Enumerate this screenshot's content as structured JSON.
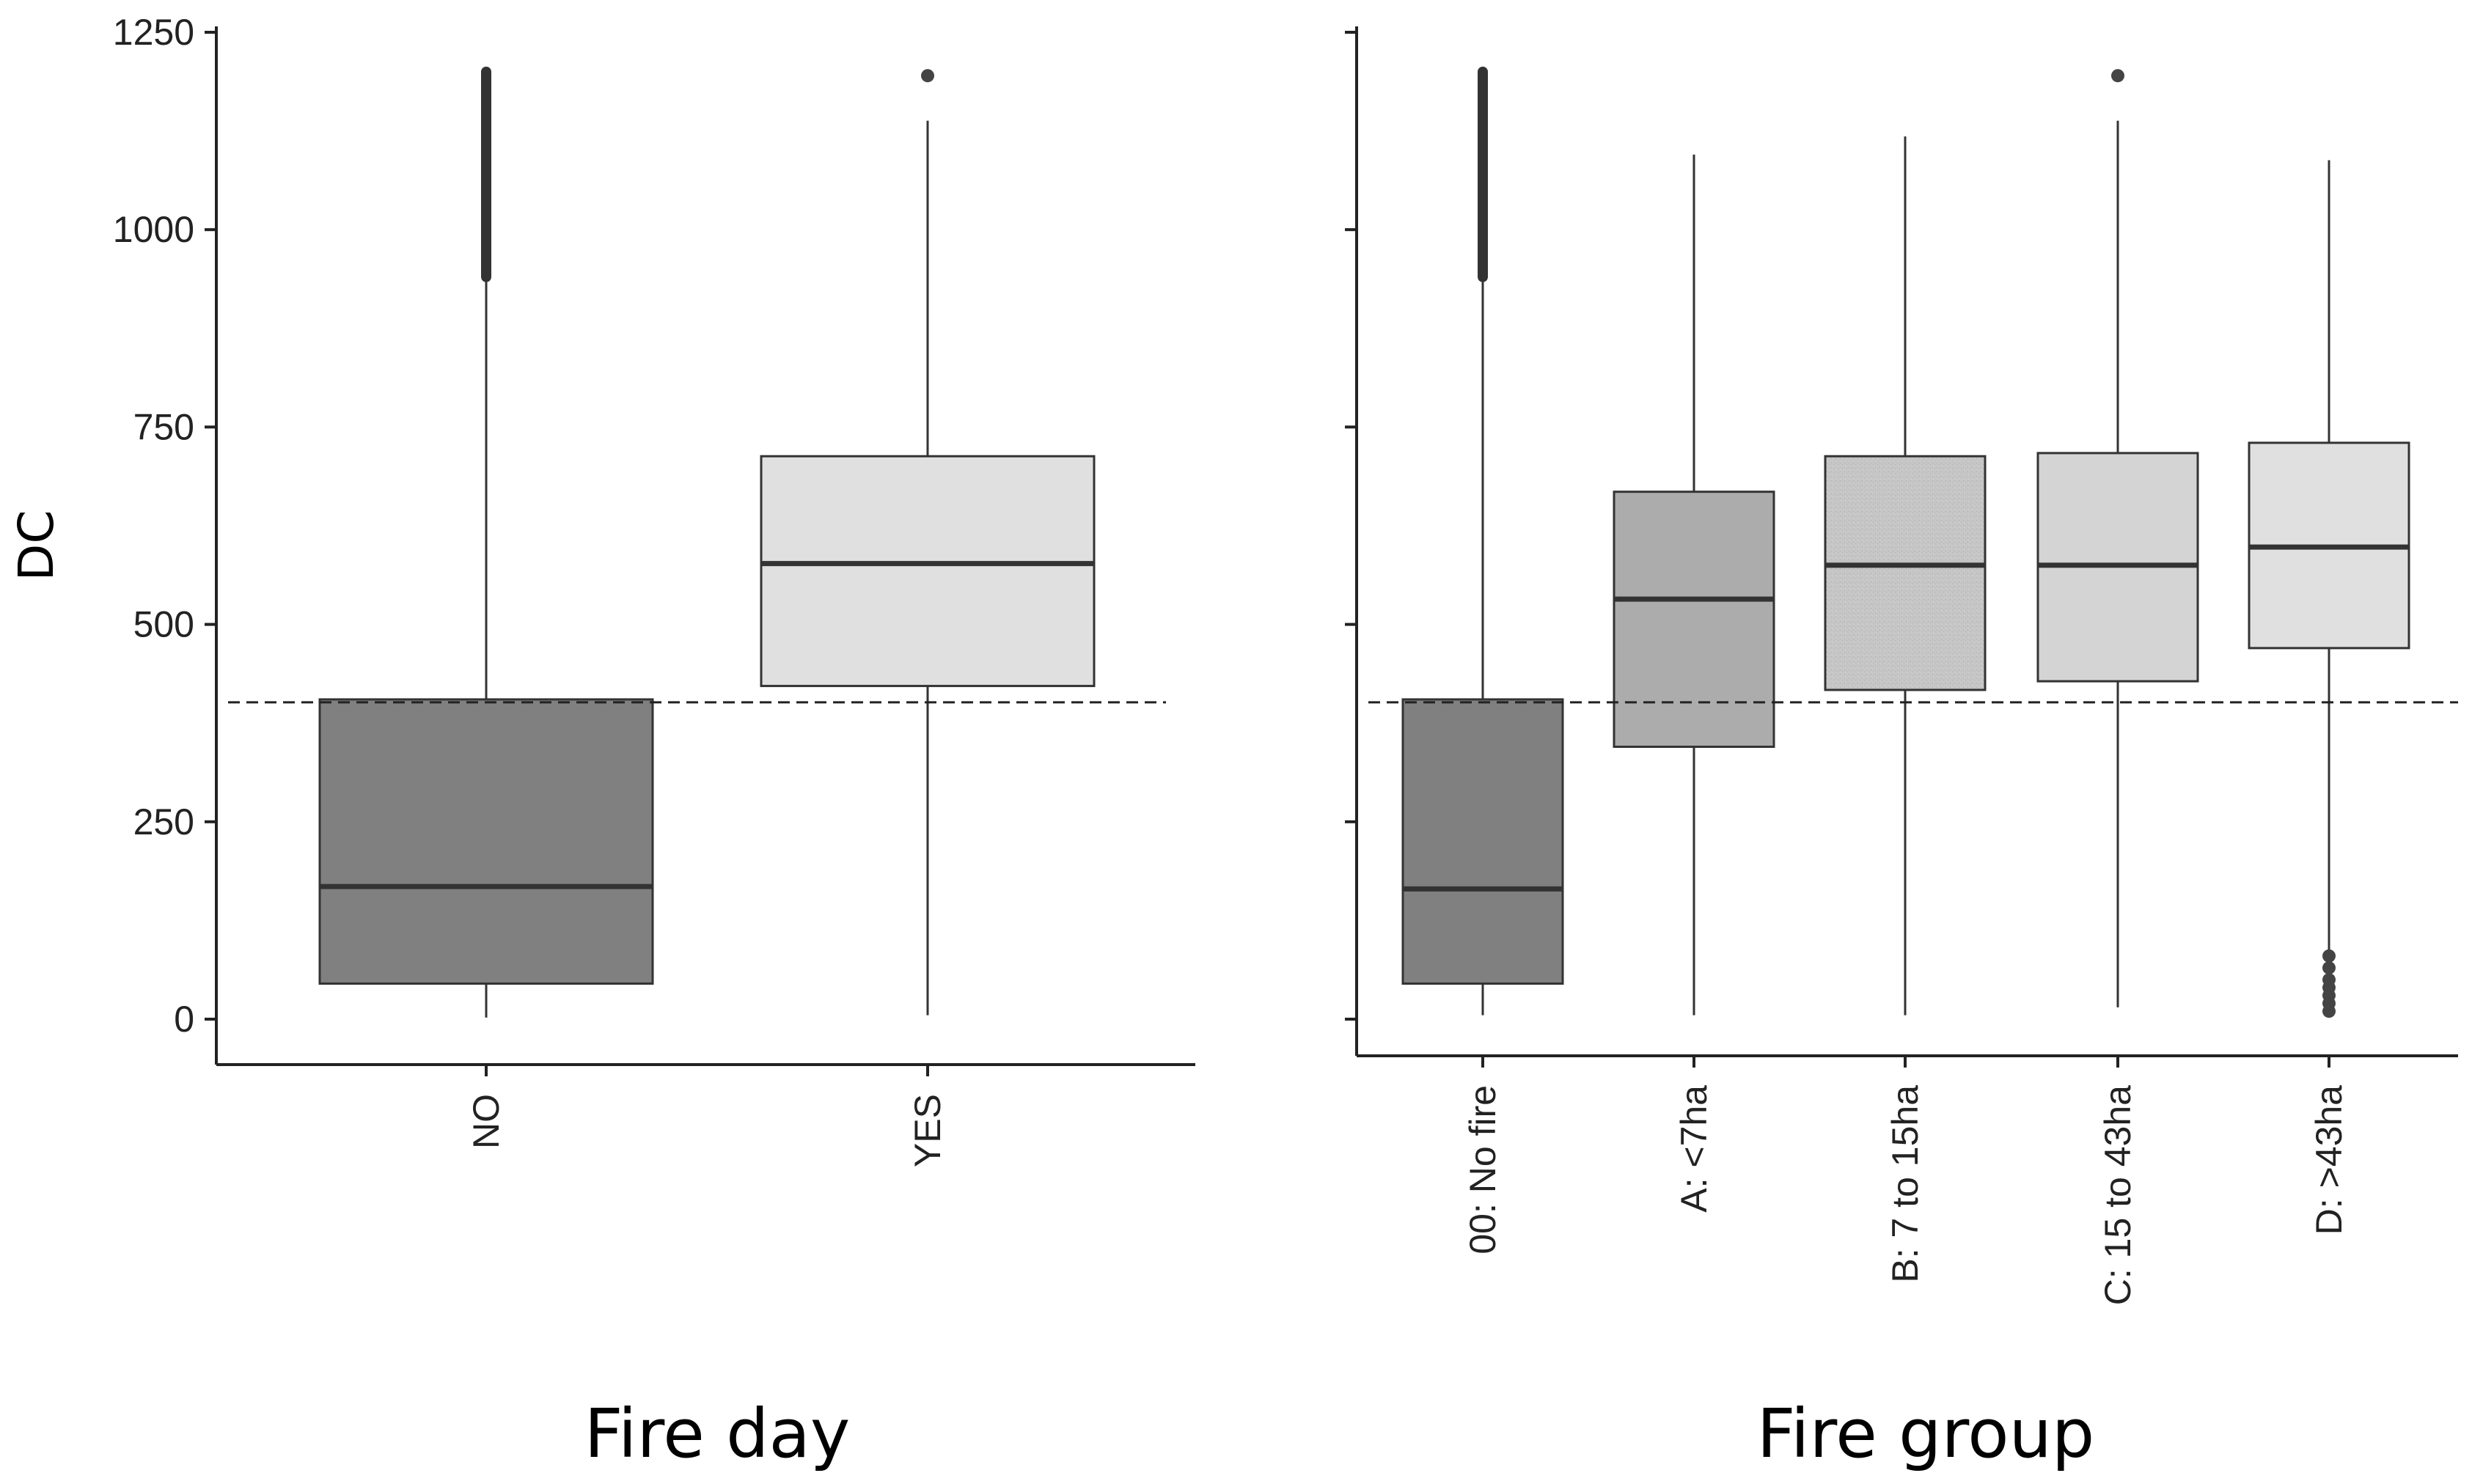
{
  "chart_data": [
    {
      "type": "box",
      "title": "",
      "xlabel": "Fire day",
      "ylabel": "DC",
      "ylim": [
        -50,
        1250
      ],
      "yticks": [
        0,
        250,
        500,
        750,
        1000,
        1250
      ],
      "reference_line": 405,
      "categories": [
        "NO",
        "YES"
      ],
      "boxes": [
        {
          "category": "NO",
          "whisker_low": 2,
          "q1": 45,
          "median": 168,
          "q3": 405,
          "whisker_high": 940,
          "outliers_range": [
            940,
            1200
          ],
          "outliers": [],
          "fill": "#808080"
        },
        {
          "category": "YES",
          "whisker_low": 5,
          "q1": 422,
          "median": 577,
          "q3": 713,
          "whisker_high": 1138,
          "outliers_range": null,
          "outliers": [
            1195
          ],
          "fill": "#e0e0e0"
        }
      ]
    },
    {
      "type": "box",
      "title": "",
      "xlabel": "Fire group",
      "ylabel": "",
      "ylim": [
        -50,
        1250
      ],
      "yticks": [
        0,
        250,
        500,
        750,
        1000,
        1250
      ],
      "reference_line": 405,
      "categories": [
        "00: No fire",
        "A: <7ha",
        "B: 7 to 15ha",
        "C: 15 to 43ha",
        "D: >43ha"
      ],
      "boxes": [
        {
          "category": "00: No fire",
          "whisker_low": 5,
          "q1": 45,
          "median": 165,
          "q3": 405,
          "whisker_high": 940,
          "outliers_range": [
            940,
            1200
          ],
          "outliers": [],
          "fill": "#808080"
        },
        {
          "category": "A: <7ha",
          "whisker_low": 5,
          "q1": 345,
          "median": 532,
          "q3": 668,
          "whisker_high": 1095,
          "outliers_range": null,
          "outliers": [],
          "fill": "#acacac"
        },
        {
          "category": "B: 7 to 15ha",
          "whisker_low": 5,
          "q1": 417,
          "median": 575,
          "q3": 713,
          "whisker_high": 1118,
          "outliers_range": null,
          "outliers": [],
          "fill": "#c8c8c8"
        },
        {
          "category": "C: 15 to 43ha",
          "whisker_low": 15,
          "q1": 428,
          "median": 575,
          "q3": 717,
          "whisker_high": 1138,
          "outliers_range": null,
          "outliers": [
            1195
          ],
          "fill": "#d4d4d4"
        },
        {
          "category": "D: >43ha",
          "whisker_low": 85,
          "q1": 470,
          "median": 598,
          "q3": 730,
          "whisker_high": 1088,
          "outliers_range": null,
          "outliers": [
            80,
            65,
            50,
            40,
            30,
            20,
            10
          ],
          "fill": "#e0e0e0"
        }
      ]
    }
  ]
}
